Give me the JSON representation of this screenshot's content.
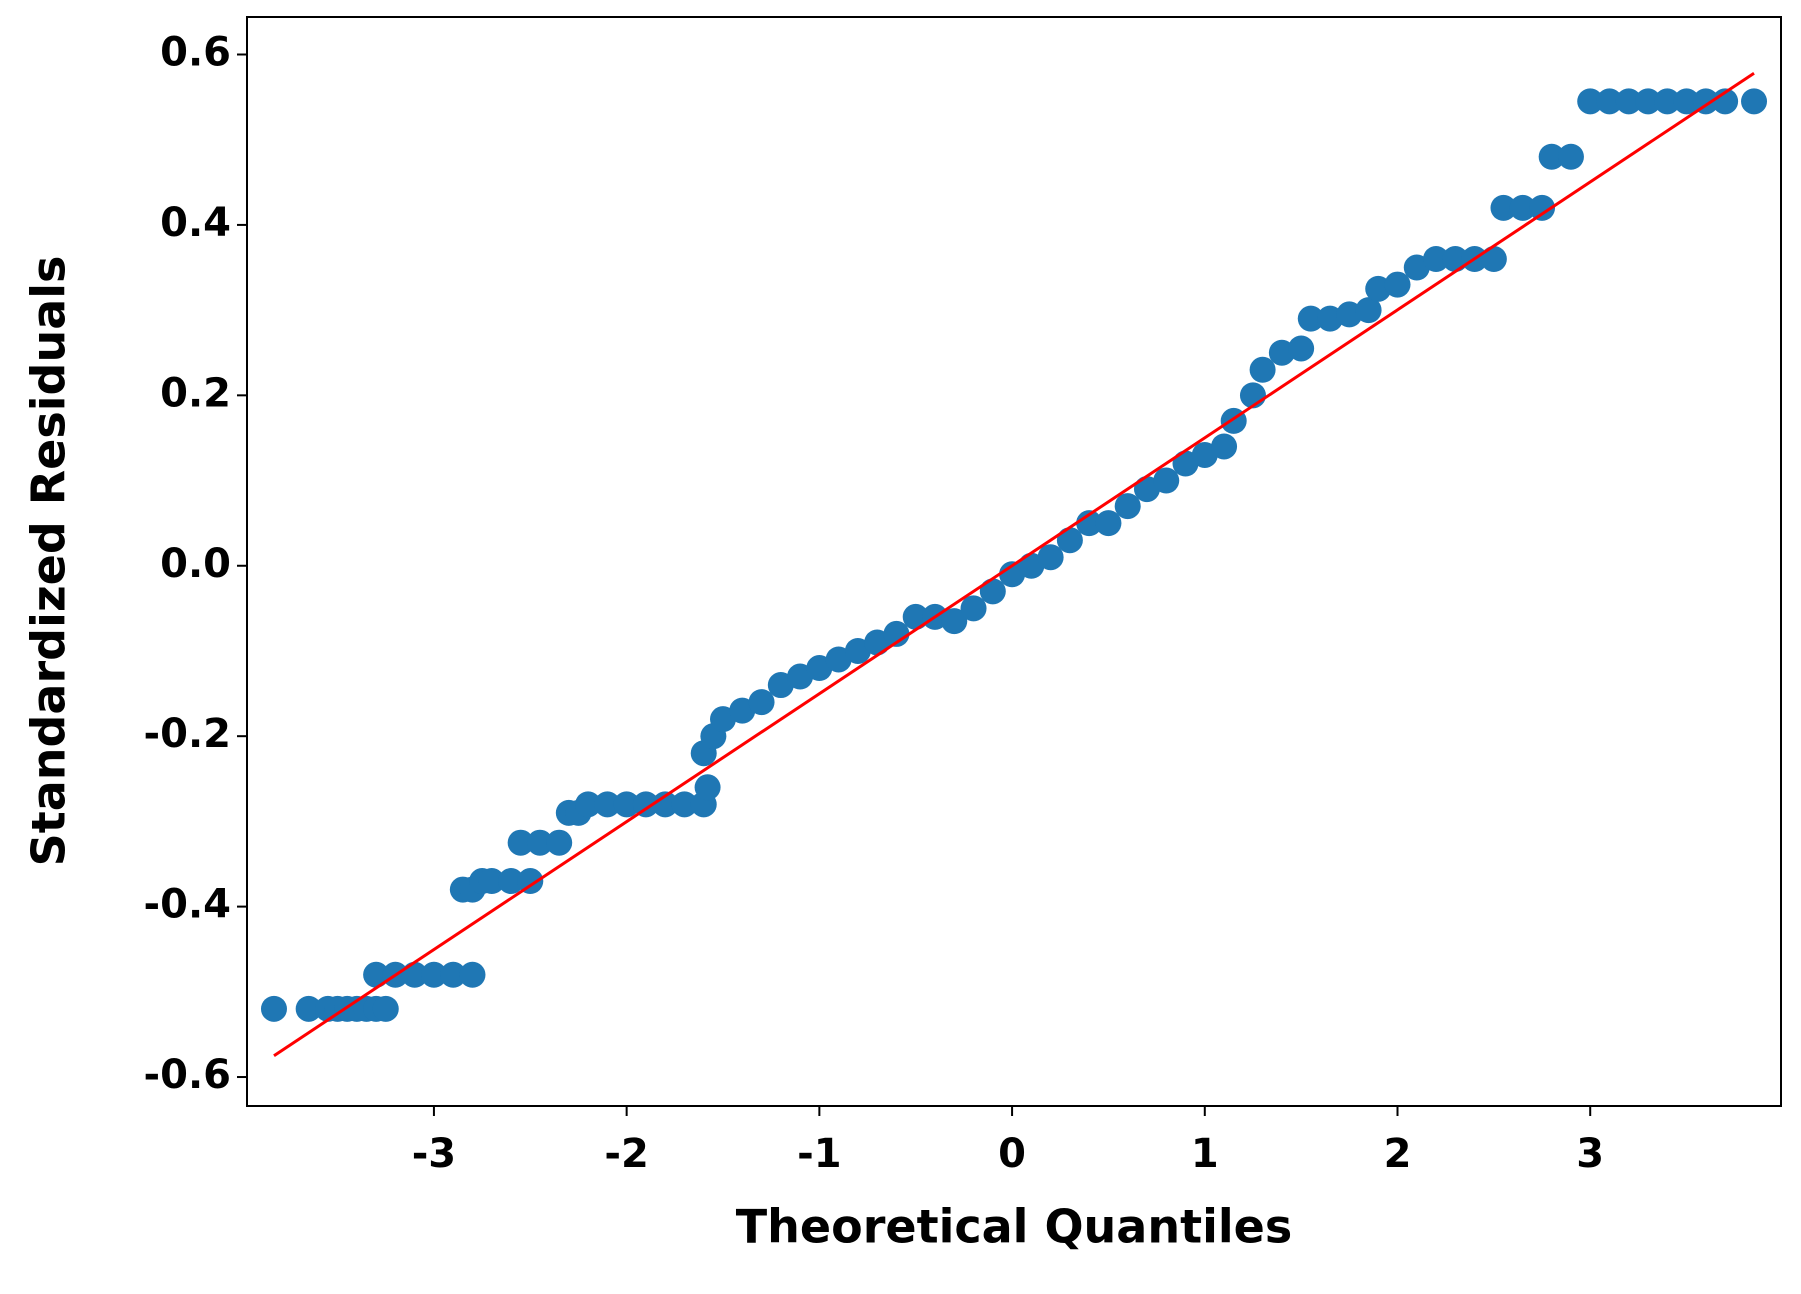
{
  "chart_data": {
    "type": "scatter",
    "xlabel": "Theoretical Quantiles",
    "ylabel": "Standardized Residuals",
    "xlim": [
      -3.97,
      3.99
    ],
    "ylim": [
      -0.634,
      0.644
    ],
    "xticks": [
      -3,
      -2,
      -1,
      0,
      1,
      2,
      3
    ],
    "yticks": [
      0.6,
      0.4,
      0.2,
      {
        "value": 0,
        "label": "0.0"
      },
      -0.2,
      -0.4,
      -0.6
    ],
    "points": {
      "color": "#1f77b4",
      "x": [
        -3.83,
        -3.65,
        -3.55,
        -3.5,
        -3.45,
        -3.4,
        -3.35,
        -3.3,
        -3.25,
        -3.3,
        -3.2,
        -3.1,
        -3.0,
        -2.9,
        -2.8,
        -2.85,
        -2.8,
        -2.75,
        -2.7,
        -2.6,
        -2.5,
        -2.55,
        -2.45,
        -2.35,
        -2.3,
        -2.25,
        -2.2,
        -2.1,
        -2.0,
        -1.9,
        -1.8,
        -1.7,
        -1.6,
        -1.58,
        -1.6,
        -1.55,
        -1.5,
        -1.4,
        -1.3,
        -1.2,
        -1.1,
        -1.0,
        -0.9,
        -0.8,
        -0.7,
        -0.6,
        -0.5,
        -0.4,
        -0.3,
        -0.2,
        -0.1,
        0,
        0.1,
        0.2,
        0.3,
        0.4,
        0.5,
        0.6,
        0.7,
        0.8,
        0.9,
        1.0,
        1.1,
        1.15,
        1.25,
        1.3,
        1.4,
        1.5,
        1.55,
        1.65,
        1.75,
        1.85,
        1.9,
        2.0,
        2.1,
        2.2,
        2.3,
        2.4,
        2.5,
        2.55,
        2.65,
        2.75,
        2.8,
        2.9,
        3.0,
        3.1,
        3.2,
        3.3,
        3.4,
        3.5,
        3.6,
        3.7,
        3.85
      ],
      "y": [
        -0.52,
        -0.52,
        -0.52,
        -0.52,
        -0.52,
        -0.52,
        -0.52,
        -0.52,
        -0.52,
        -0.48,
        -0.48,
        -0.48,
        -0.48,
        -0.48,
        -0.48,
        -0.38,
        -0.38,
        -0.37,
        -0.37,
        -0.37,
        -0.37,
        -0.325,
        -0.325,
        -0.325,
        -0.29,
        -0.29,
        -0.28,
        -0.28,
        -0.28,
        -0.28,
        -0.28,
        -0.28,
        -0.28,
        -0.26,
        -0.22,
        -0.2,
        -0.18,
        -0.17,
        -0.16,
        -0.14,
        -0.13,
        -0.12,
        -0.11,
        -0.1,
        -0.09,
        -0.08,
        -0.06,
        -0.06,
        -0.065,
        -0.05,
        -0.03,
        -0.01,
        0.0,
        0.01,
        0.03,
        0.05,
        0.05,
        0.07,
        0.09,
        0.1,
        0.12,
        0.13,
        0.14,
        0.17,
        0.2,
        0.23,
        0.25,
        0.255,
        0.29,
        0.29,
        0.295,
        0.3,
        0.325,
        0.33,
        0.35,
        0.36,
        0.36,
        0.36,
        0.36,
        0.42,
        0.42,
        0.42,
        0.48,
        0.48,
        0.545,
        0.545,
        0.545,
        0.545,
        0.545,
        0.545,
        0.545,
        0.545,
        0.545
      ]
    },
    "line": {
      "color": "#ff0000",
      "x": [
        -3.83,
        3.85
      ],
      "y": [
        -0.575,
        0.578
      ]
    }
  }
}
